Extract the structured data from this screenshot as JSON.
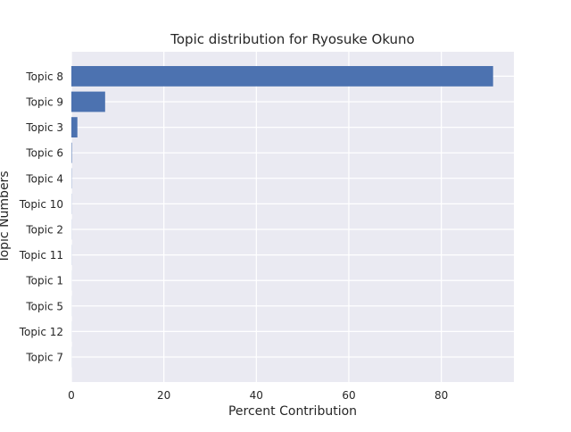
{
  "chart_data": {
    "type": "bar",
    "orientation": "horizontal",
    "title": "Topic distribution for Ryosuke Okuno",
    "xlabel": "Percent Contribution",
    "ylabel": "Topic Numbers",
    "categories": [
      "Topic 8",
      "Topic 9",
      "Topic 3",
      "Topic 6",
      "Topic 4",
      "Topic 10",
      "Topic 2",
      "Topic 11",
      "Topic 1",
      "Topic 5",
      "Topic 12",
      "Topic 7"
    ],
    "values": [
      91.2,
      7.3,
      1.3,
      0.1,
      0.05,
      0.03,
      0.02,
      0.02,
      0.01,
      0.01,
      0.01,
      0.01
    ],
    "xlim": [
      0,
      95.7
    ],
    "xticks": [
      "0",
      "20",
      "40",
      "60",
      "80"
    ],
    "grid": true,
    "colors": {
      "bar": "#4c72b0",
      "plot_background": "#eaeaf2",
      "grid": "#ffffff",
      "text": "#262626"
    }
  }
}
